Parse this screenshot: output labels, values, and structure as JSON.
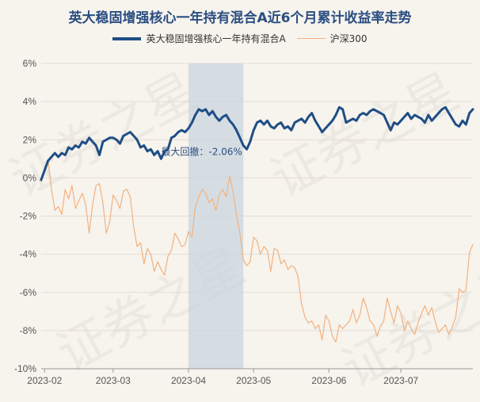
{
  "chart_data": {
    "type": "line",
    "title": "英大稳固增强核心一年持有混合A近6个月累计收益率走势",
    "xlabel": "",
    "ylabel": "",
    "ylim": [
      -10,
      6
    ],
    "yticks": [
      6,
      4,
      2,
      0,
      -2,
      -4,
      -6,
      -8,
      -10
    ],
    "ytick_suffix": "%",
    "xticks": [
      {
        "label": "2023-02",
        "t": 1
      },
      {
        "label": "2023-03",
        "t": 21
      },
      {
        "label": "2023-04",
        "t": 43
      },
      {
        "label": "2023-05",
        "t": 62
      },
      {
        "label": "2023-06",
        "t": 84
      },
      {
        "label": "2023-07",
        "t": 105
      }
    ],
    "t_range": [
      0,
      126
    ],
    "shaded_region": [
      43,
      59
    ],
    "annotation": {
      "text": "最大回撤：-2.06%",
      "t": 35,
      "y": 1.2
    },
    "legend_position": "top",
    "grid": "horizontal",
    "series": [
      {
        "name": "英大稳固增强核心一年持有混合A",
        "color": "#1f4e85",
        "width": 3,
        "values": [
          -0.1,
          0.4,
          0.9,
          1.1,
          1.3,
          1.1,
          1.3,
          1.2,
          1.6,
          1.5,
          1.7,
          1.6,
          1.9,
          1.8,
          2.1,
          1.9,
          1.7,
          1.2,
          1.9,
          2.0,
          2.1,
          2.1,
          2.0,
          1.8,
          2.2,
          2.3,
          2.4,
          2.2,
          2.0,
          1.6,
          1.7,
          1.4,
          1.5,
          1.2,
          1.4,
          1.0,
          1.4,
          1.5,
          2.1,
          2.2,
          2.4,
          2.5,
          2.4,
          2.6,
          2.9,
          3.3,
          3.6,
          3.5,
          3.6,
          3.3,
          3.5,
          3.2,
          3.0,
          3.2,
          3.3,
          3.0,
          2.8,
          2.5,
          2.1,
          1.7,
          1.5,
          1.9,
          2.5,
          2.9,
          3.0,
          2.8,
          3.0,
          2.7,
          2.6,
          2.8,
          2.9,
          2.6,
          2.7,
          2.5,
          2.9,
          3.0,
          3.1,
          2.9,
          3.2,
          3.4,
          3.0,
          2.7,
          2.4,
          2.6,
          2.8,
          3.0,
          3.3,
          3.7,
          3.6,
          2.9,
          3.0,
          3.1,
          3.0,
          3.3,
          3.4,
          3.3,
          3.5,
          3.6,
          3.5,
          3.4,
          3.3,
          2.9,
          2.5,
          2.9,
          2.8,
          3.0,
          3.2,
          3.4,
          3.1,
          3.3,
          3.2,
          3.1,
          2.9,
          3.3,
          3.0,
          3.2,
          3.4,
          3.6,
          3.7,
          3.4,
          3.1,
          2.8,
          2.7,
          3.0,
          2.8,
          3.4,
          3.6
        ]
      },
      {
        "name": "沪深300",
        "color": "#f2b27f",
        "width": 1.2,
        "values": [
          -0.2,
          0.5,
          0.9,
          -0.6,
          -1.7,
          -1.5,
          -1.9,
          -0.6,
          -1.1,
          -0.4,
          -1.6,
          -1.2,
          -0.8,
          -1.4,
          -2.9,
          -1.4,
          -0.4,
          -0.3,
          -1.3,
          -2.9,
          -2.3,
          -0.9,
          -1.2,
          -1.6,
          -0.7,
          -0.6,
          -1.0,
          -2.6,
          -3.6,
          -3.4,
          -4.5,
          -3.7,
          -4.0,
          -4.9,
          -4.4,
          -4.8,
          -5.1,
          -4.1,
          -3.8,
          -2.9,
          -3.2,
          -3.6,
          -3.5,
          -2.8,
          -3.1,
          -1.5,
          -1.0,
          -0.6,
          -0.8,
          -1.3,
          -1.1,
          -1.7,
          -0.9,
          -0.6,
          -1.0,
          0.1,
          -0.7,
          -1.9,
          -2.9,
          -4.3,
          -4.6,
          -4.4,
          -3.1,
          -3.3,
          -4.0,
          -3.6,
          -3.8,
          -4.9,
          -3.7,
          -3.8,
          -4.5,
          -4.3,
          -4.8,
          -4.6,
          -4.7,
          -5.2,
          -6.6,
          -7.3,
          -7.6,
          -7.5,
          -7.9,
          -7.7,
          -8.5,
          -7.2,
          -7.5,
          -8.3,
          -8.6,
          -7.7,
          -7.9,
          -7.7,
          -7.5,
          -6.9,
          -7.6,
          -7.2,
          -6.3,
          -6.8,
          -7.5,
          -7.7,
          -8.3,
          -7.8,
          -7.5,
          -6.3,
          -7.0,
          -7.6,
          -6.7,
          -7.1,
          -8.0,
          -7.5,
          -7.9,
          -8.2,
          -7.6,
          -7.1,
          -6.7,
          -7.2,
          -6.8,
          -7.5,
          -8.1,
          -7.9,
          -7.7,
          -8.2,
          -7.8,
          -7.3,
          -5.8,
          -6.0,
          -5.9,
          -3.9,
          -3.5
        ]
      }
    ]
  },
  "watermark": "证券之星"
}
